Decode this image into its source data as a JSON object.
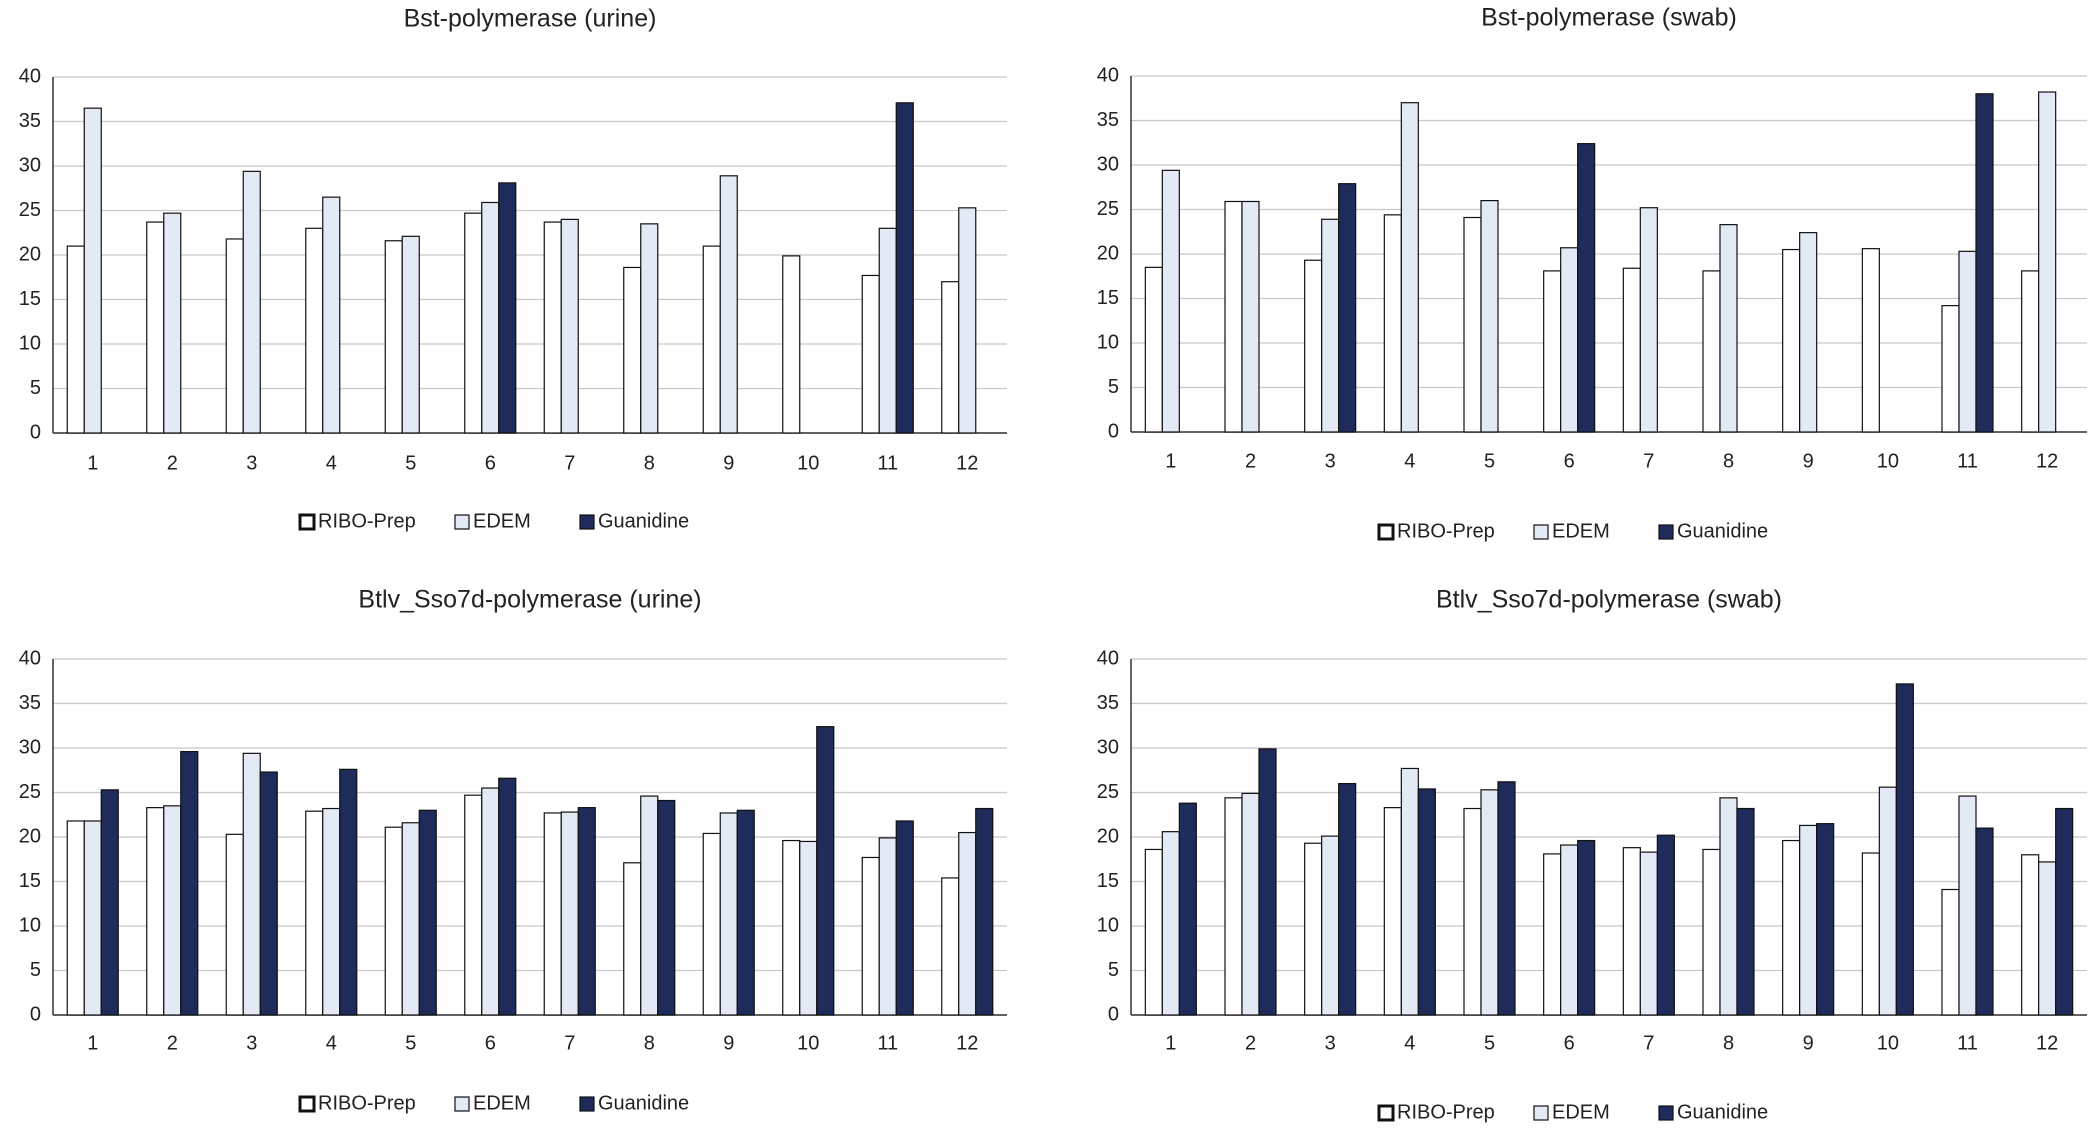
{
  "chart_data": [
    {
      "type": "bar",
      "title": "Bst-polymerase (urine)",
      "categories": [
        "1",
        "2",
        "3",
        "4",
        "5",
        "6",
        "7",
        "8",
        "9",
        "10",
        "11",
        "12"
      ],
      "series": [
        {
          "name": "RIBO-Prep",
          "color": "#ffffff",
          "values": [
            21,
            23.7,
            21.8,
            23,
            21.6,
            24.7,
            23.7,
            18.6,
            21,
            19.9,
            17.7,
            17
          ]
        },
        {
          "name": "EDEM",
          "color": "#e4e9f6",
          "values": [
            36.5,
            24.7,
            29.4,
            26.5,
            22.1,
            25.9,
            24,
            23.5,
            28.9,
            null,
            23,
            25.3
          ]
        },
        {
          "name": "Guanidine",
          "color": "#1f2b5b",
          "values": [
            null,
            null,
            null,
            null,
            null,
            28.1,
            null,
            null,
            null,
            null,
            37.1,
            null
          ]
        }
      ],
      "ylim": [
        0,
        40
      ],
      "yticks": [
        0,
        5,
        10,
        15,
        20,
        25,
        30,
        35,
        40
      ],
      "grid": true
    },
    {
      "type": "bar",
      "title": "Bst-polymerase (swab)",
      "categories": [
        "1",
        "2",
        "3",
        "4",
        "5",
        "6",
        "7",
        "8",
        "9",
        "10",
        "11",
        "12"
      ],
      "series": [
        {
          "name": "RIBO-Prep",
          "color": "#ffffff",
          "values": [
            18.5,
            25.9,
            19.3,
            24.4,
            24.1,
            18.1,
            18.4,
            18.1,
            20.5,
            20.6,
            14.2,
            18.1
          ]
        },
        {
          "name": "EDEM",
          "color": "#e4e9f6",
          "values": [
            29.4,
            25.9,
            23.9,
            37,
            26,
            20.7,
            25.2,
            23.3,
            22.4,
            null,
            20.3,
            38.2
          ]
        },
        {
          "name": "Guanidine",
          "color": "#1f2b5b",
          "values": [
            null,
            null,
            27.9,
            null,
            null,
            32.4,
            null,
            null,
            null,
            null,
            38,
            null
          ]
        }
      ],
      "ylim": [
        0,
        40
      ],
      "yticks": [
        0,
        5,
        10,
        15,
        20,
        25,
        30,
        35,
        40
      ],
      "grid": true
    },
    {
      "type": "bar",
      "title": "Btlv_Sso7d-polymerase (urine)",
      "categories": [
        "1",
        "2",
        "3",
        "4",
        "5",
        "6",
        "7",
        "8",
        "9",
        "10",
        "11",
        "12"
      ],
      "series": [
        {
          "name": "RIBO-Prep",
          "color": "#ffffff",
          "values": [
            21.8,
            23.3,
            20.3,
            22.9,
            21.1,
            24.7,
            22.7,
            17.1,
            20.4,
            19.6,
            17.7,
            15.4
          ]
        },
        {
          "name": "EDEM",
          "color": "#e4e9f6",
          "values": [
            21.8,
            23.5,
            29.4,
            23.2,
            21.6,
            25.5,
            22.8,
            24.6,
            22.7,
            19.5,
            19.9,
            20.5
          ]
        },
        {
          "name": "Guanidine",
          "color": "#1f2b5b",
          "values": [
            25.3,
            29.6,
            27.3,
            27.6,
            23,
            26.6,
            23.3,
            24.1,
            23,
            32.4,
            21.8,
            23.2
          ]
        }
      ],
      "ylim": [
        0,
        40
      ],
      "yticks": [
        0,
        5,
        10,
        15,
        20,
        25,
        30,
        35,
        40
      ],
      "grid": true
    },
    {
      "type": "bar",
      "title": "Btlv_Sso7d-polymerase (swab)",
      "categories": [
        "1",
        "2",
        "3",
        "4",
        "5",
        "6",
        "7",
        "8",
        "9",
        "10",
        "11",
        "12"
      ],
      "series": [
        {
          "name": "RIBO-Prep",
          "color": "#ffffff",
          "values": [
            18.6,
            24.4,
            19.3,
            23.3,
            23.2,
            18.1,
            18.8,
            18.6,
            19.6,
            18.2,
            14.1,
            18
          ]
        },
        {
          "name": "EDEM",
          "color": "#e4e9f6",
          "values": [
            20.6,
            24.9,
            20.1,
            27.7,
            25.3,
            19.1,
            18.3,
            24.4,
            21.3,
            25.6,
            24.6,
            17.2
          ]
        },
        {
          "name": "Guanidine",
          "color": "#1f2b5b",
          "values": [
            23.8,
            29.9,
            26,
            25.4,
            26.2,
            19.6,
            20.2,
            23.2,
            21.5,
            37.2,
            21,
            23.2
          ]
        }
      ],
      "ylim": [
        0,
        40
      ],
      "yticks": [
        0,
        5,
        10,
        15,
        20,
        25,
        30,
        35,
        40
      ],
      "grid": true
    }
  ]
}
